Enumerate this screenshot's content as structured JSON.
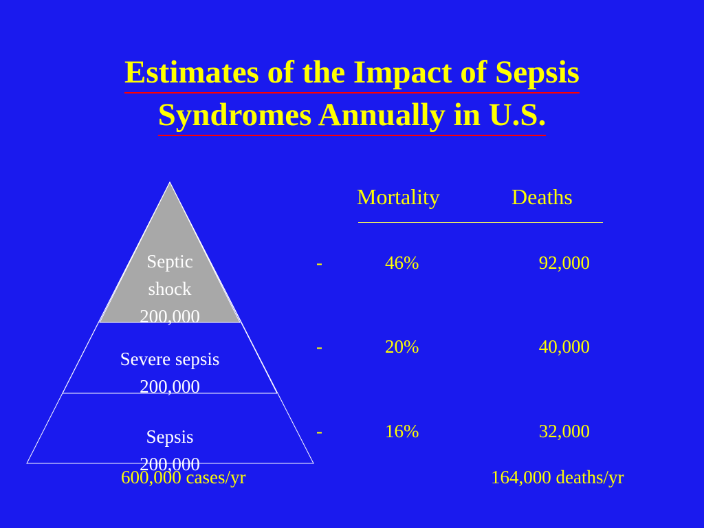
{
  "title": {
    "line1": "Estimates of the Impact of Sepsis",
    "line2": "Syndromes Annually in U.S."
  },
  "pyramid": {
    "tiers": [
      {
        "line1": "Septic",
        "line2": "shock",
        "line3": "200,000"
      },
      {
        "line1": "Severe sepsis",
        "line2": "200,000"
      },
      {
        "line1": "Sepsis",
        "line2": "200,000"
      }
    ],
    "total": "600,000 cases/yr"
  },
  "table": {
    "headers": {
      "mortality": "Mortality",
      "deaths": "Deaths"
    },
    "rows": [
      {
        "dash": "-",
        "mortality": "46%",
        "deaths": "92,000"
      },
      {
        "dash": "-",
        "mortality": "20%",
        "deaths": "40,000"
      },
      {
        "dash": "-",
        "mortality": "16%",
        "deaths": "32,000"
      }
    ],
    "total": "164,000 deaths/yr"
  },
  "colors": {
    "background": "#1a1aee",
    "title": "#ffff00",
    "underline": "#ff0000",
    "apex_fill": "#a8a8a8",
    "pyramid_lines": "#ffffff"
  }
}
